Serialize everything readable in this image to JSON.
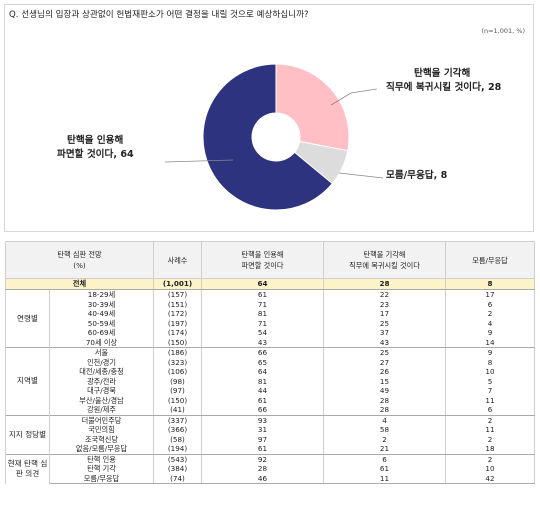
{
  "question": "Q. 선생님의 입장과 상관없이 헌법재판소가 어떤 결정을 내릴 것으로 예상하십니까?",
  "sample_note": "(n=1,001, %)",
  "colors": {
    "uphold": "#2e3380",
    "dismiss": "#ffbfc4",
    "unknown": "#dcdcdc"
  },
  "chart_data": {
    "type": "pie",
    "donut": true,
    "slices": [
      {
        "label_line1": "탄핵을 기각해",
        "label_line2": "직무에 복귀시킬 것이다",
        "value": 28,
        "color": "#ffbfc4"
      },
      {
        "label_line1": "모름/무응답",
        "label_line2": "",
        "value": 8,
        "color": "#dcdcdc"
      },
      {
        "label_line1": "탄핵을 인용해",
        "label_line2": "파면할 것이다",
        "value": 64,
        "color": "#2e3380"
      }
    ]
  },
  "table": {
    "headers": {
      "category_line1": "탄핵 심판 전망",
      "category_line2": "(%)",
      "count": "사례수",
      "uphold_line1": "탄핵을 인용해",
      "uphold_line2": "파면할 것이다",
      "dismiss_line1": "탄핵을 기각해",
      "dismiss_line2": "직무에 복귀시킬 것이다",
      "unknown": "모름/무응답"
    },
    "total": {
      "label": "전체",
      "n": "(1,001)",
      "uphold": "64",
      "dismiss": "28",
      "unknown": "8"
    },
    "groups": [
      {
        "name": "연령별",
        "rows": [
          {
            "label": "18-29세",
            "n": "(157)",
            "uphold": "61",
            "dismiss": "22",
            "unknown": "17"
          },
          {
            "label": "30-39세",
            "n": "(151)",
            "uphold": "71",
            "dismiss": "23",
            "unknown": "6"
          },
          {
            "label": "40-49세",
            "n": "(172)",
            "uphold": "81",
            "dismiss": "17",
            "unknown": "2"
          },
          {
            "label": "50-59세",
            "n": "(197)",
            "uphold": "71",
            "dismiss": "25",
            "unknown": "4"
          },
          {
            "label": "60-69세",
            "n": "(174)",
            "uphold": "54",
            "dismiss": "37",
            "unknown": "9"
          },
          {
            "label": "70세 이상",
            "n": "(150)",
            "uphold": "43",
            "dismiss": "43",
            "unknown": "14"
          }
        ]
      },
      {
        "name": "지역별",
        "rows": [
          {
            "label": "서울",
            "n": "(186)",
            "uphold": "66",
            "dismiss": "25",
            "unknown": "9"
          },
          {
            "label": "인천/경기",
            "n": "(323)",
            "uphold": "65",
            "dismiss": "27",
            "unknown": "8"
          },
          {
            "label": "대전/세종/충청",
            "n": "(106)",
            "uphold": "64",
            "dismiss": "26",
            "unknown": "10"
          },
          {
            "label": "광주/전라",
            "n": "(98)",
            "uphold": "81",
            "dismiss": "15",
            "unknown": "5"
          },
          {
            "label": "대구/경북",
            "n": "(97)",
            "uphold": "44",
            "dismiss": "49",
            "unknown": "7"
          },
          {
            "label": "부산/울산/경남",
            "n": "(150)",
            "uphold": "61",
            "dismiss": "28",
            "unknown": "11"
          },
          {
            "label": "강원/제주",
            "n": "(41)",
            "uphold": "66",
            "dismiss": "28",
            "unknown": "6"
          }
        ]
      },
      {
        "name": "지지 정당별",
        "rows": [
          {
            "label": "더불어민주당",
            "n": "(337)",
            "uphold": "93",
            "dismiss": "4",
            "unknown": "2"
          },
          {
            "label": "국민의힘",
            "n": "(366)",
            "uphold": "31",
            "dismiss": "58",
            "unknown": "11"
          },
          {
            "label": "조국혁신당",
            "n": "(58)",
            "uphold": "97",
            "dismiss": "2",
            "unknown": "2"
          },
          {
            "label": "없음/모름/무응답",
            "n": "(194)",
            "uphold": "61",
            "dismiss": "21",
            "unknown": "18"
          }
        ]
      },
      {
        "name": "현재 탄핵 심판 의견",
        "rows": [
          {
            "label": "탄핵 인용",
            "n": "(543)",
            "uphold": "92",
            "dismiss": "6",
            "unknown": "2"
          },
          {
            "label": "탄핵 기각",
            "n": "(384)",
            "uphold": "28",
            "dismiss": "61",
            "unknown": "10"
          },
          {
            "label": "모름/무응답",
            "n": "(74)",
            "uphold": "46",
            "dismiss": "11",
            "unknown": "42"
          }
        ]
      }
    ]
  }
}
